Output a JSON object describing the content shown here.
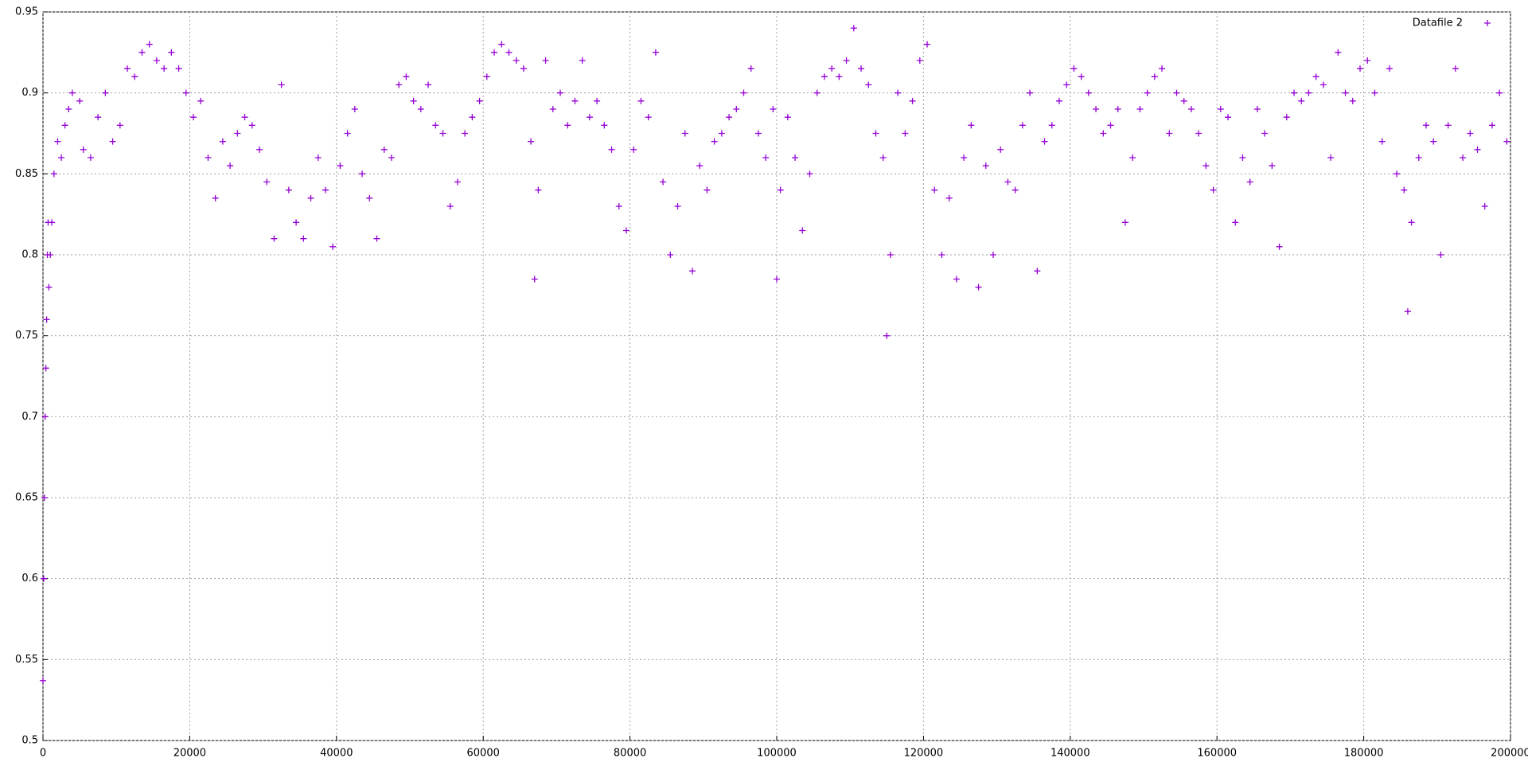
{
  "chart_data": {
    "type": "scatter",
    "xlim": [
      0,
      200000
    ],
    "xticks": [
      0,
      20000,
      40000,
      60000,
      80000,
      100000,
      120000,
      140000,
      160000,
      180000,
      200000
    ],
    "ylim": [
      0.5,
      0.95
    ],
    "yticks": [
      0.5,
      0.55,
      0.6,
      0.65,
      0.7,
      0.75,
      0.8,
      0.85,
      0.9,
      0.95
    ],
    "grid": true,
    "legend": "top-right",
    "x": [
      0,
      100,
      200,
      300,
      400,
      500,
      600,
      700,
      800,
      1000,
      1200,
      1500,
      2000,
      2500,
      3000,
      3500,
      4000,
      5000,
      5500,
      6500,
      7500,
      8500,
      9500,
      10500,
      11500,
      12500,
      13500,
      14500,
      15500,
      16500,
      17500,
      18500,
      19500,
      20500,
      21500,
      22500,
      23500,
      24500,
      25500,
      26500,
      27500,
      28500,
      29500,
      30500,
      31500,
      32500,
      33500,
      34500,
      35500,
      36500,
      37500,
      38500,
      39500,
      40500,
      41500,
      42500,
      43500,
      44500,
      45500,
      46500,
      47500,
      48500,
      49500,
      50500,
      51500,
      52500,
      53500,
      54500,
      55500,
      56500,
      57500,
      58500,
      59500,
      60500,
      61500,
      62500,
      63500,
      64500,
      65500,
      66500,
      67000,
      67500,
      68500,
      69500,
      70500,
      71500,
      72500,
      73500,
      74500,
      75500,
      76500,
      77500,
      78500,
      79500,
      80500,
      81500,
      82500,
      83500,
      84500,
      85500,
      86500,
      87500,
      88500,
      89500,
      90500,
      91500,
      92500,
      93500,
      94500,
      95500,
      96500,
      97500,
      98500,
      99500,
      100000,
      100500,
      101500,
      102500,
      103500,
      104500,
      105500,
      106500,
      107500,
      108500,
      109500,
      110500,
      111500,
      112500,
      113500,
      114500,
      115000,
      115500,
      116500,
      117500,
      118500,
      119500,
      120500,
      121500,
      122500,
      123500,
      124500,
      125500,
      126500,
      127500,
      128500,
      129500,
      130500,
      131500,
      132500,
      133500,
      134500,
      135500,
      136500,
      137500,
      138500,
      139500,
      140500,
      141500,
      142500,
      143500,
      144500,
      145500,
      146500,
      147500,
      148500,
      149500,
      150500,
      151500,
      152500,
      153500,
      154500,
      155500,
      156500,
      157500,
      158500,
      159500,
      160500,
      161500,
      162500,
      163500,
      164500,
      165500,
      166500,
      167500,
      168500,
      169500,
      170500,
      171500,
      172500,
      173500,
      174500,
      175500,
      176500,
      177500,
      178500,
      179500,
      180500,
      181500,
      182500,
      183500,
      184500,
      185500,
      186000,
      186500,
      187500,
      188500,
      189500,
      190500,
      191500,
      192500,
      193500,
      194500,
      195500,
      196500,
      197500,
      198500,
      199500
    ],
    "series": [
      {
        "name": "Datafile 2",
        "color": "#9400d3",
        "values": [
          0.537,
          0.6,
          0.65,
          0.7,
          0.73,
          0.76,
          0.8,
          0.82,
          0.78,
          0.8,
          0.82,
          0.85,
          0.87,
          0.86,
          0.88,
          0.89,
          0.9,
          0.895,
          0.865,
          0.86,
          0.885,
          0.9,
          0.87,
          0.88,
          0.915,
          0.91,
          0.925,
          0.93,
          0.92,
          0.915,
          0.925,
          0.915,
          0.9,
          0.885,
          0.895,
          0.86,
          0.835,
          0.87,
          0.855,
          0.875,
          0.885,
          0.88,
          0.865,
          0.845,
          0.81,
          0.905,
          0.84,
          0.82,
          0.81,
          0.835,
          0.86,
          0.84,
          0.805,
          0.855,
          0.875,
          0.89,
          0.85,
          0.835,
          0.81,
          0.865,
          0.86,
          0.905,
          0.91,
          0.895,
          0.89,
          0.905,
          0.88,
          0.875,
          0.83,
          0.845,
          0.875,
          0.885,
          0.895,
          0.91,
          0.925,
          0.93,
          0.925,
          0.92,
          0.915,
          0.87,
          0.785,
          0.84,
          0.92,
          0.89,
          0.9,
          0.88,
          0.895,
          0.92,
          0.885,
          0.895,
          0.88,
          0.865,
          0.83,
          0.815,
          0.865,
          0.895,
          0.885,
          0.925,
          0.845,
          0.8,
          0.83,
          0.875,
          0.79,
          0.855,
          0.84,
          0.87,
          0.875,
          0.885,
          0.89,
          0.9,
          0.915,
          0.875,
          0.86,
          0.89,
          0.785,
          0.84,
          0.885,
          0.86,
          0.815,
          0.85,
          0.9,
          0.91,
          0.915,
          0.91,
          0.92,
          0.94,
          0.915,
          0.905,
          0.875,
          0.86,
          0.75,
          0.8,
          0.9,
          0.875,
          0.895,
          0.92,
          0.93,
          0.84,
          0.8,
          0.835,
          0.785,
          0.86,
          0.88,
          0.78,
          0.855,
          0.8,
          0.865,
          0.845,
          0.84,
          0.88,
          0.9,
          0.79,
          0.87,
          0.88,
          0.895,
          0.905,
          0.915,
          0.91,
          0.9,
          0.89,
          0.875,
          0.88,
          0.89,
          0.82,
          0.86,
          0.89,
          0.9,
          0.91,
          0.915,
          0.875,
          0.9,
          0.895,
          0.89,
          0.875,
          0.855,
          0.84,
          0.89,
          0.885,
          0.82,
          0.86,
          0.845,
          0.89,
          0.875,
          0.855,
          0.805,
          0.885,
          0.9,
          0.895,
          0.9,
          0.91,
          0.905,
          0.86,
          0.925,
          0.9,
          0.895,
          0.915,
          0.92,
          0.9,
          0.87,
          0.915,
          0.85,
          0.84,
          0.765,
          0.82,
          0.86,
          0.88,
          0.87,
          0.8,
          0.88,
          0.915,
          0.86,
          0.875,
          0.865,
          0.83,
          0.88,
          0.9,
          0.87
        ]
      }
    ]
  }
}
